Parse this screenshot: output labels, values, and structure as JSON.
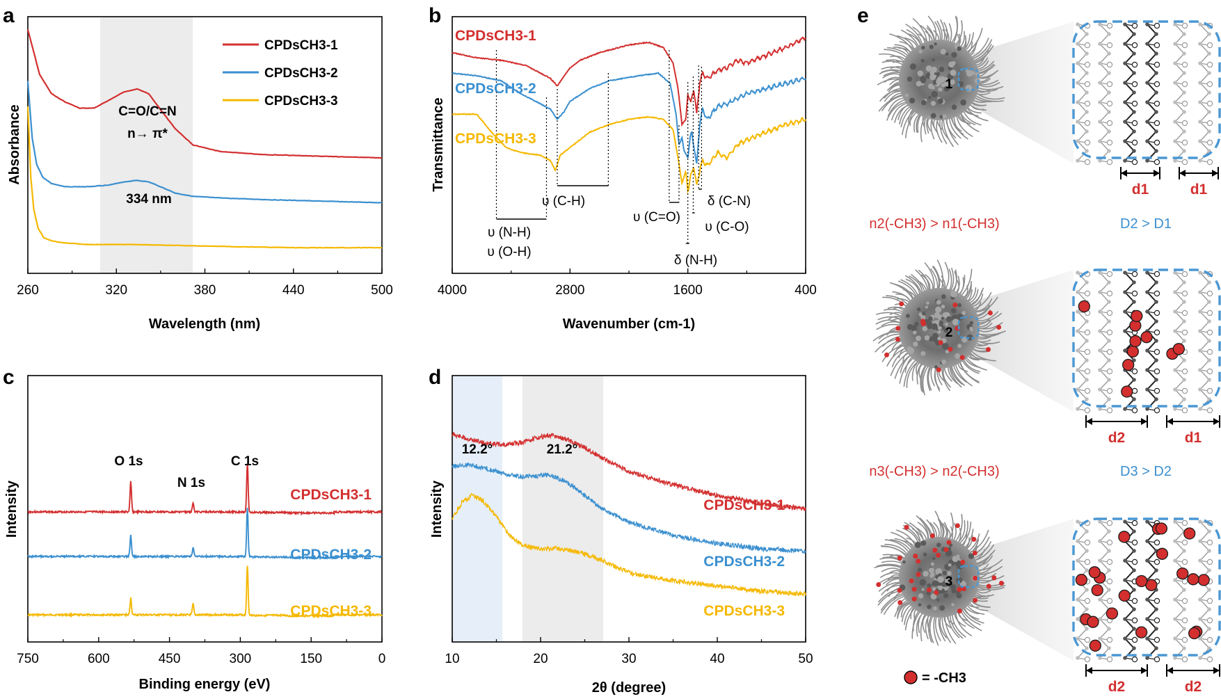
{
  "colors": {
    "s1": "#d32f2f",
    "s2": "#3a8fcf",
    "s3": "#f5b800",
    "shade_gray": "#ececec",
    "shade_blue": "#e6eff9",
    "bubble": "#4a97d3",
    "methyl": "#d32f2f"
  },
  "panel_labels": {
    "a": "a",
    "b": "b",
    "c": "c",
    "d": "d",
    "e": "e"
  },
  "series_names": [
    "CPDsCH3-1",
    "CPDsCH3-2",
    "CPDsCH3-3"
  ],
  "chart_data": [
    {
      "id": "a",
      "type": "line",
      "title": "",
      "xlabel": "Wavelength (nm)",
      "ylabel": "Absorbance",
      "xlim": [
        260,
        500
      ],
      "xticks": [
        260,
        320,
        380,
        440,
        500
      ],
      "shaded_x": [
        310,
        372
      ],
      "annotations": {
        "band_line1": "C=O/C=N",
        "band_line2": "n→ π*",
        "peak": "334 nm"
      },
      "legend": [
        "CPDsCH3-1",
        "CPDsCH3-2",
        "CPDsCH3-3"
      ],
      "legend_position": "top-right",
      "series": [
        {
          "name": "CPDsCH3-1",
          "x": [
            260,
            268,
            276,
            285,
            295,
            305,
            315,
            325,
            334,
            342,
            350,
            360,
            372,
            390,
            420,
            460,
            500
          ],
          "y": [
            0.86,
            0.72,
            0.66,
            0.635,
            0.615,
            0.615,
            0.64,
            0.665,
            0.675,
            0.66,
            0.61,
            0.55,
            0.5,
            0.48,
            0.47,
            0.465,
            0.46
          ]
        },
        {
          "name": "CPDsCH3-2",
          "x": [
            260,
            263,
            266,
            270,
            276,
            285,
            300,
            315,
            325,
            334,
            342,
            350,
            360,
            372,
            390,
            420,
            460,
            500
          ],
          "y": [
            0.7,
            0.52,
            0.44,
            0.4,
            0.38,
            0.37,
            0.37,
            0.375,
            0.385,
            0.39,
            0.385,
            0.37,
            0.35,
            0.34,
            0.335,
            0.33,
            0.325,
            0.32
          ]
        },
        {
          "name": "CPDsCH3-3",
          "x": [
            260,
            262,
            264,
            267,
            271,
            277,
            285,
            300,
            330,
            380,
            440,
            500
          ],
          "y": [
            0.62,
            0.4,
            0.3,
            0.24,
            0.21,
            0.2,
            0.195,
            0.19,
            0.19,
            0.185,
            0.18,
            0.18
          ]
        }
      ]
    },
    {
      "id": "b",
      "type": "line",
      "xlabel": "Wavenumber (cm-1)",
      "ylabel": "Transmittance",
      "xlim": [
        4000,
        400
      ],
      "xticks": [
        4000,
        2800,
        1600,
        400
      ],
      "annotations": [
        "υ (N-H)",
        "υ (O-H)",
        "υ (C-H)",
        "υ (C=O)",
        "δ (C-N)",
        "υ (C-O)",
        "δ (N-H)"
      ],
      "series": [
        {
          "name": "CPDsCH3-1",
          "x": [
            4000,
            3750,
            3500,
            3250,
            3100,
            3000,
            2930,
            2860,
            2800,
            2700,
            2500,
            2200,
            2000,
            1850,
            1750,
            1700,
            1660,
            1620,
            1600,
            1570,
            1540,
            1510,
            1480,
            1450,
            1400,
            1300,
            1200,
            1100,
            1000,
            800,
            600,
            400
          ],
          "y": [
            0.86,
            0.84,
            0.83,
            0.81,
            0.78,
            0.76,
            0.73,
            0.77,
            0.8,
            0.83,
            0.86,
            0.89,
            0.9,
            0.88,
            0.82,
            0.72,
            0.58,
            0.6,
            0.7,
            0.66,
            0.72,
            0.62,
            0.74,
            0.78,
            0.76,
            0.79,
            0.8,
            0.83,
            0.82,
            0.85,
            0.88,
            0.92
          ]
        },
        {
          "name": "CPDsCH3-2",
          "x": [
            4000,
            3750,
            3500,
            3300,
            3100,
            3000,
            2930,
            2860,
            2800,
            2600,
            2400,
            2100,
            1900,
            1780,
            1720,
            1690,
            1660,
            1640,
            1600,
            1580,
            1560,
            1540,
            1510,
            1480,
            1450,
            1400,
            1300,
            1200,
            1100,
            1000,
            800,
            600,
            400
          ],
          "y": [
            0.78,
            0.77,
            0.75,
            0.7,
            0.66,
            0.64,
            0.6,
            0.63,
            0.67,
            0.72,
            0.75,
            0.77,
            0.78,
            0.74,
            0.62,
            0.5,
            0.53,
            0.48,
            0.45,
            0.52,
            0.55,
            0.5,
            0.42,
            0.58,
            0.64,
            0.6,
            0.65,
            0.66,
            0.68,
            0.7,
            0.72,
            0.74,
            0.76
          ]
        },
        {
          "name": "CPDsCH3-3",
          "x": [
            4000,
            3750,
            3600,
            3450,
            3300,
            3100,
            3000,
            2950,
            2900,
            2800,
            2600,
            2400,
            2200,
            2000,
            1850,
            1750,
            1700,
            1660,
            1620,
            1600,
            1570,
            1540,
            1510,
            1480,
            1450,
            1400,
            1300,
            1200,
            1100,
            1000,
            800,
            600,
            400
          ],
          "y": [
            0.62,
            0.62,
            0.55,
            0.49,
            0.47,
            0.46,
            0.44,
            0.4,
            0.46,
            0.49,
            0.55,
            0.58,
            0.6,
            0.61,
            0.6,
            0.56,
            0.45,
            0.35,
            0.4,
            0.32,
            0.38,
            0.42,
            0.34,
            0.4,
            0.44,
            0.42,
            0.47,
            0.45,
            0.5,
            0.52,
            0.55,
            0.58,
            0.6
          ]
        }
      ]
    },
    {
      "id": "c",
      "type": "line",
      "xlabel": "Binding energy (eV)",
      "ylabel": "Intensity",
      "xlim": [
        750,
        0
      ],
      "xticks": [
        750,
        600,
        450,
        300,
        150,
        0
      ],
      "annotations": {
        "o1s": "O 1s",
        "n1s": "N 1s",
        "c1s": "C 1s"
      },
      "peaks": [
        {
          "series": "CPDsCH3-1",
          "o": 0.9,
          "n": 0.35,
          "c": 1.0
        },
        {
          "series": "CPDsCH3-2",
          "o": 0.65,
          "n": 0.3,
          "c": 1.0
        },
        {
          "series": "CPDsCH3-3",
          "o": 0.5,
          "n": 0.4,
          "c": 1.0
        }
      ],
      "peak_positions_eV": {
        "O 1s": 532,
        "N 1s": 400,
        "C 1s": 285
      }
    },
    {
      "id": "d",
      "type": "line",
      "xlabel": "2θ (degree)",
      "ylabel": "Intensity",
      "xlim": [
        10,
        50
      ],
      "xticks": [
        10,
        20,
        30,
        40,
        50
      ],
      "shaded_blue": [
        10,
        15.6
      ],
      "shaded_gray": [
        18,
        27
      ],
      "annotations": {
        "peak1": "12.2°",
        "peak2": "21.2°"
      },
      "series": [
        {
          "name": "CPDsCH3-1",
          "x": [
            10,
            12,
            14,
            16,
            18,
            20,
            21.2,
            23,
            25,
            27,
            30,
            35,
            40,
            45,
            50
          ],
          "y": [
            0.78,
            0.76,
            0.745,
            0.74,
            0.75,
            0.77,
            0.775,
            0.76,
            0.73,
            0.69,
            0.64,
            0.59,
            0.55,
            0.52,
            0.5
          ]
        },
        {
          "name": "CPDsCH3-2",
          "x": [
            10,
            12,
            14,
            16,
            18,
            20,
            21.2,
            23,
            25,
            27,
            30,
            35,
            40,
            45,
            50
          ],
          "y": [
            0.66,
            0.665,
            0.65,
            0.63,
            0.62,
            0.625,
            0.625,
            0.6,
            0.55,
            0.5,
            0.45,
            0.4,
            0.37,
            0.35,
            0.34
          ]
        },
        {
          "name": "CPDsCH3-3",
          "x": [
            10,
            11,
            12.2,
            13.5,
            15,
            16.5,
            18,
            20,
            22,
            24,
            26,
            28,
            30,
            35,
            40,
            45,
            50
          ],
          "y": [
            0.46,
            0.52,
            0.55,
            0.53,
            0.47,
            0.4,
            0.36,
            0.35,
            0.35,
            0.34,
            0.32,
            0.29,
            0.26,
            0.23,
            0.21,
            0.19,
            0.18
          ]
        }
      ]
    }
  ],
  "panel_e": {
    "particles": [
      "1",
      "2",
      "3"
    ],
    "relation_n1": "n2(-CH3) > n1(-CH3)",
    "relation_d1": "D2 > D1",
    "relation_n2": "n3(-CH3) > n2(-CH3)",
    "relation_d2": "D3 > D2",
    "spacings": [
      [
        "d1",
        "d1"
      ],
      [
        "d2",
        "d1"
      ],
      [
        "d2",
        "d2"
      ]
    ],
    "legend": "= -CH3"
  }
}
